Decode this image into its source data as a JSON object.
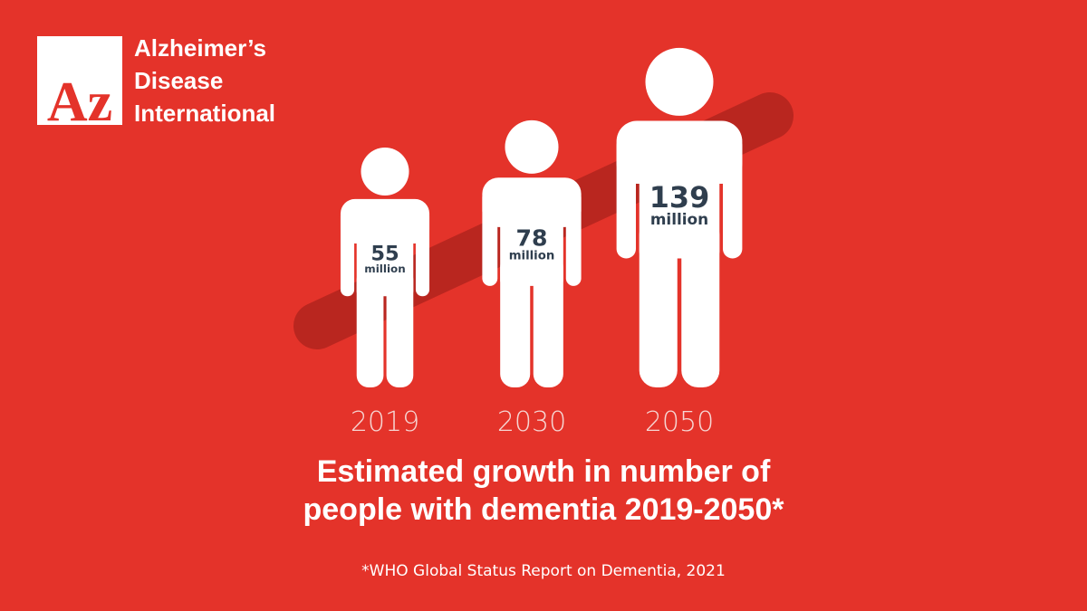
{
  "header": {
    "logo_mark": "Az",
    "logo_lines": [
      "Alzheimer’s",
      "Disease",
      "International"
    ]
  },
  "chart_data": {
    "type": "pictograph",
    "title": [
      "Estimated growth in number of",
      "people with dementia 2019-2050*"
    ],
    "categories": [
      "2019",
      "2030",
      "2050"
    ],
    "values": [
      55,
      78,
      139
    ],
    "unit": "million",
    "color": "#ffffff",
    "label_color": "#2f3e4e",
    "background": "#e4332a",
    "band_color": "#b9261f",
    "source": "*WHO Global Status Report on Dementia, 2021"
  }
}
